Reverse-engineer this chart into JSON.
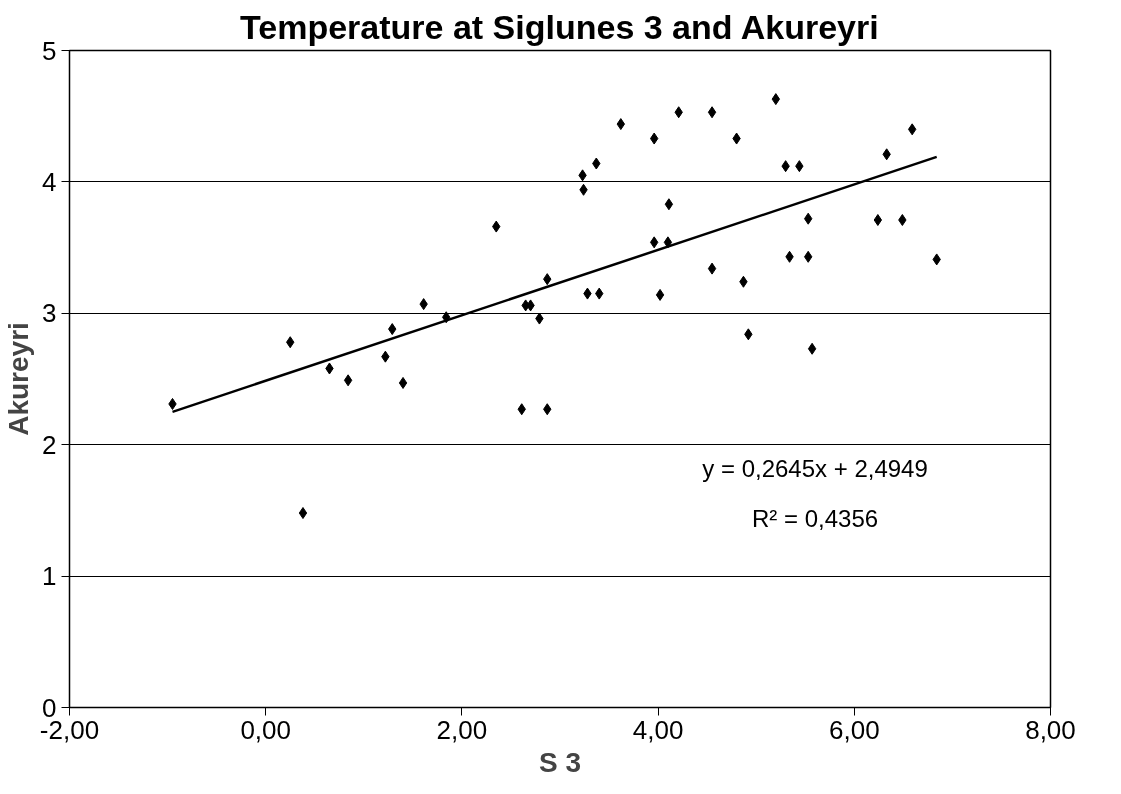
{
  "chart_data": {
    "type": "scatter",
    "title": "Temperature at Siglunes 3 and Akureyri",
    "xlabel": "S 3",
    "ylabel": "Akureyri",
    "xlim": [
      -2,
      8
    ],
    "ylim": [
      0,
      5
    ],
    "xticks": [
      {
        "value": -2,
        "label": "-2,00"
      },
      {
        "value": 0,
        "label": "0,00"
      },
      {
        "value": 2,
        "label": "2,00"
      },
      {
        "value": 4,
        "label": "4,00"
      },
      {
        "value": 6,
        "label": "6,00"
      },
      {
        "value": 8,
        "label": "8,00"
      }
    ],
    "yticks": [
      0,
      1,
      2,
      3,
      4,
      5
    ],
    "grid": "y",
    "annotations": [
      "y = 0,2645x + 2,4949",
      "R² = 0,4356"
    ],
    "series": [
      {
        "color": "#000000",
        "marker": "diamond",
        "x": [
          -0.95,
          0.25,
          0.38,
          0.65,
          0.84,
          1.22,
          1.29,
          1.4,
          1.61,
          1.84,
          2.35,
          2.61,
          2.65,
          2.7,
          2.79,
          2.87,
          2.87,
          3.23,
          3.24,
          3.37,
          3.28,
          3.4,
          3.62,
          3.96,
          3.96,
          4.11,
          4.1,
          4.02,
          4.21,
          4.55,
          4.55,
          4.8,
          4.87,
          4.92,
          5.2,
          5.3,
          5.44,
          5.34,
          5.53,
          5.53,
          5.57,
          6.24,
          6.33,
          6.49,
          6.59,
          6.84
        ],
        "values": [
          2.31,
          2.78,
          1.48,
          2.58,
          2.49,
          2.67,
          2.88,
          2.47,
          3.07,
          2.97,
          3.66,
          2.27,
          3.06,
          3.06,
          2.96,
          2.27,
          3.26,
          4.05,
          3.94,
          4.14,
          3.15,
          3.15,
          4.44,
          4.33,
          3.54,
          3.83,
          3.54,
          3.14,
          4.53,
          4.53,
          3.34,
          4.33,
          3.24,
          2.84,
          4.63,
          4.12,
          4.12,
          3.43,
          3.72,
          3.43,
          2.73,
          3.71,
          4.21,
          3.71,
          4.4,
          3.41
        ]
      },
      {
        "type": "line",
        "marker": "none",
        "color": "#000000",
        "line_style": "solid",
        "x": [
          -0.95,
          6.84
        ],
        "values": [
          2.25,
          4.19
        ]
      }
    ]
  }
}
